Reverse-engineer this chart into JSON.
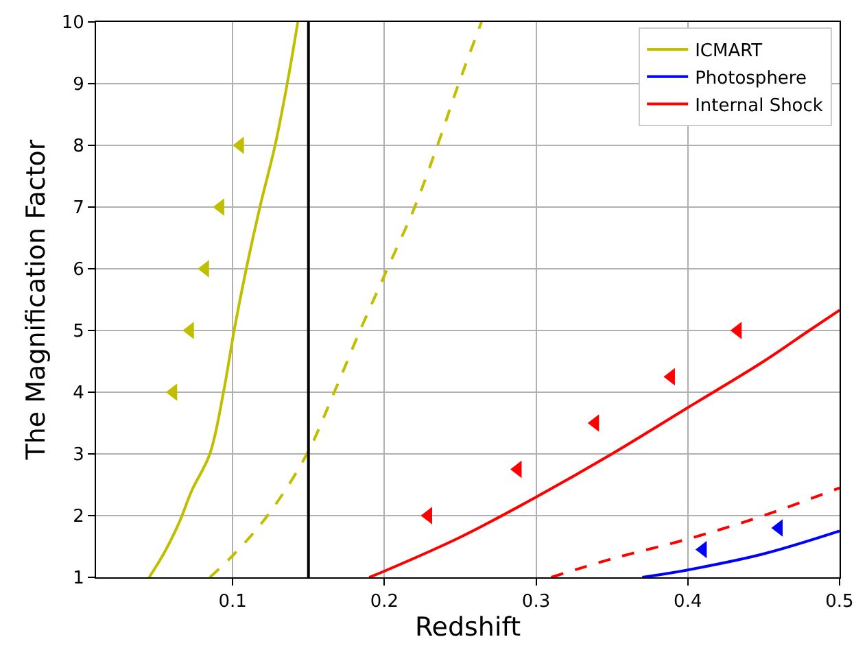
{
  "chart_data": {
    "type": "line",
    "xlabel": "Redshift",
    "ylabel": "The Magnification Factor",
    "xlim": [
      0.01,
      0.5
    ],
    "ylim": [
      1,
      10
    ],
    "xticks": [
      0.1,
      0.2,
      0.3,
      0.4,
      0.5
    ],
    "yticks": [
      1,
      2,
      3,
      4,
      5,
      6,
      7,
      8,
      9,
      10
    ],
    "grid": true,
    "legend": "top right",
    "marker": "none",
    "series": [
      {
        "name": "ICMART",
        "color": "#bfbf00",
        "line_style": "solid",
        "x": [
          0.045,
          0.055,
          0.065,
          0.073,
          0.085,
          0.094,
          0.101,
          0.109,
          0.118,
          0.128,
          0.136,
          0.143
        ],
        "values": [
          1,
          1.4,
          1.9,
          2.4,
          3,
          4,
          5,
          6,
          7,
          8,
          9,
          10
        ]
      },
      {
        "color": "#bfbf00",
        "line_style": "dashed",
        "x": [
          0.085,
          0.1,
          0.123,
          0.149,
          0.167,
          0.184,
          0.202,
          0.22,
          0.235,
          0.249,
          0.264
        ],
        "values": [
          1,
          1.35,
          2,
          3,
          4,
          5,
          6,
          7,
          8,
          9,
          10
        ]
      },
      {
        "name": "Photosphere",
        "color": "#0000ff",
        "line_style": "solid",
        "x": [
          0.37,
          0.4,
          0.45,
          0.5
        ],
        "values": [
          1,
          1.12,
          1.38,
          1.75
        ]
      },
      {
        "name": "Internal Shock",
        "color": "#ff0000",
        "line_style": "solid",
        "x": [
          0.19,
          0.2,
          0.25,
          0.3,
          0.35,
          0.4,
          0.45,
          0.48,
          0.5
        ],
        "values": [
          1,
          1.1,
          1.65,
          2.3,
          3,
          3.75,
          4.5,
          5,
          5.33
        ]
      },
      {
        "color": "#ff0000",
        "line_style": "dashed",
        "x": [
          0.31,
          0.35,
          0.4,
          0.45,
          0.5
        ],
        "values": [
          1,
          1.3,
          1.62,
          2,
          2.45
        ]
      },
      {
        "type": "scatter",
        "marker": "triangle",
        "color": "#bfbf00",
        "x": [
          0.105,
          0.092,
          0.082,
          0.072,
          0.061
        ],
        "values": [
          8,
          7,
          6,
          5,
          4
        ]
      },
      {
        "type": "scatter",
        "marker": "triangle",
        "color": "#ff0000",
        "x": [
          0.229,
          0.288,
          0.339,
          0.389,
          0.433
        ],
        "values": [
          2,
          2.75,
          3.5,
          4.25,
          5
        ]
      },
      {
        "type": "scatter",
        "marker": "triangle",
        "color": "#0000ff",
        "x": [
          0.41,
          0.46
        ],
        "values": [
          1.45,
          1.8
        ]
      }
    ],
    "ref_lines": [
      {
        "axis": "x",
        "value": 0.15,
        "color": "#000000",
        "line_style": "solid"
      }
    ]
  }
}
